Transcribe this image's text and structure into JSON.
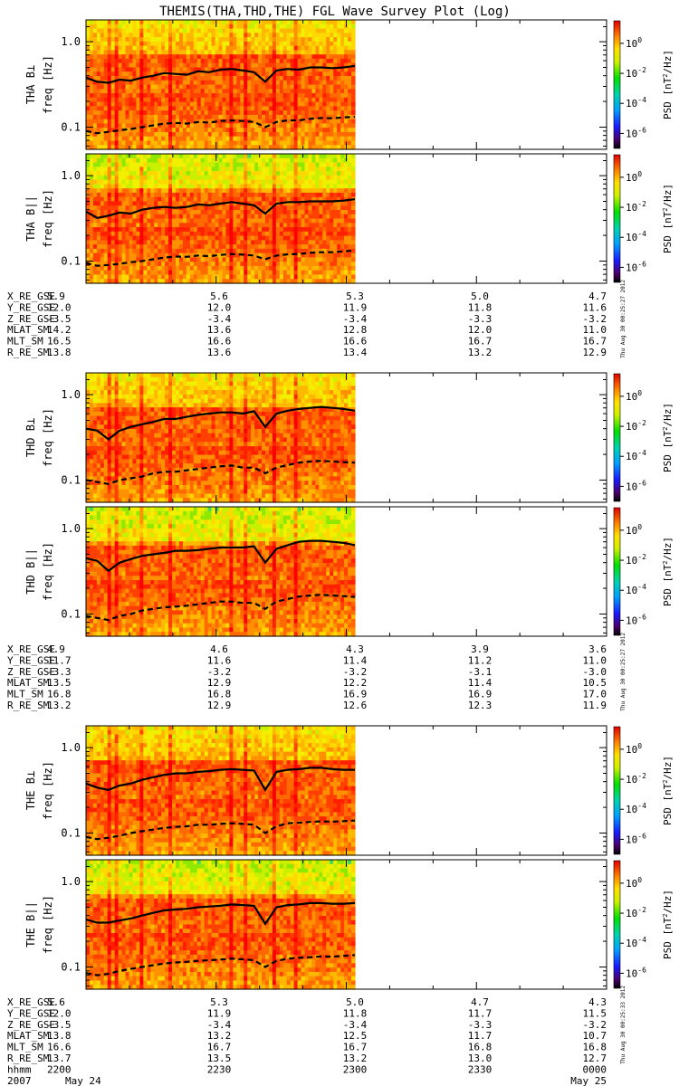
{
  "title": "THEMIS(THA,THD,THE) FGL Wave Survey Plot (Log)",
  "colors": {
    "frame": "#000000",
    "background": "#ffffff"
  },
  "chart_data": {
    "type": "heatmap",
    "title": "THEMIS(THA,THD,THE) FGL Wave Survey Plot (Log)",
    "x_range_hhmm": [
      "2200",
      "0000"
    ],
    "data_end_hhmm": "2300",
    "ylabel_common": "freq [Hz]",
    "ylim_hz": [
      0.055,
      1.8
    ],
    "ytick_labels": [
      "1.0",
      "0.1"
    ],
    "ytick_values": [
      1.0,
      0.1
    ],
    "colorbar": {
      "label": "PSD [nT²/Hz]",
      "label_prefix": "PSD [nT",
      "label_suffix": "/Hz]",
      "range_log10": [
        -7,
        1.5
      ],
      "tick_mantissa": "10",
      "tick_exponents": [
        "0",
        "-2",
        "-4",
        "-6"
      ]
    },
    "panels": [
      {
        "probe": "THA",
        "label_base": "THA B",
        "label_sym": "⊥",
        "solid_rel_freq": [
          0.38,
          0.34,
          0.33,
          0.36,
          0.35,
          0.38,
          0.4,
          0.43,
          0.42,
          0.41,
          0.45,
          0.44,
          0.47,
          0.48,
          0.46,
          0.44,
          0.34,
          0.46,
          0.48,
          0.47,
          0.5,
          0.5,
          0.49,
          0.5,
          0.52
        ],
        "dash_rel_freq": [
          0.09,
          0.085,
          0.088,
          0.092,
          0.095,
          0.1,
          0.105,
          0.11,
          0.112,
          0.11,
          0.115,
          0.113,
          0.118,
          0.12,
          0.118,
          0.115,
          0.1,
          0.115,
          0.12,
          0.12,
          0.125,
          0.128,
          0.127,
          0.13,
          0.132
        ]
      },
      {
        "probe": "THA",
        "label_base": "THA B",
        "label_sym": "||",
        "solid_rel_freq": [
          0.38,
          0.32,
          0.34,
          0.37,
          0.36,
          0.4,
          0.42,
          0.43,
          0.42,
          0.43,
          0.46,
          0.45,
          0.47,
          0.49,
          0.47,
          0.45,
          0.36,
          0.47,
          0.49,
          0.49,
          0.5,
          0.5,
          0.5,
          0.51,
          0.53
        ],
        "dash_rel_freq": [
          0.095,
          0.088,
          0.09,
          0.093,
          0.097,
          0.1,
          0.105,
          0.11,
          0.113,
          0.112,
          0.116,
          0.114,
          0.118,
          0.121,
          0.119,
          0.116,
          0.105,
          0.116,
          0.12,
          0.121,
          0.125,
          0.127,
          0.127,
          0.13,
          0.133
        ]
      },
      {
        "probe": "THD",
        "label_base": "THD B",
        "label_sym": "⊥",
        "solid_rel_freq": [
          0.4,
          0.38,
          0.3,
          0.38,
          0.42,
          0.45,
          0.48,
          0.52,
          0.52,
          0.55,
          0.58,
          0.6,
          0.62,
          0.62,
          0.6,
          0.64,
          0.42,
          0.6,
          0.65,
          0.68,
          0.7,
          0.72,
          0.7,
          0.68,
          0.65
        ],
        "dash_rel_freq": [
          0.1,
          0.095,
          0.09,
          0.1,
          0.105,
          0.11,
          0.12,
          0.125,
          0.125,
          0.13,
          0.135,
          0.14,
          0.145,
          0.148,
          0.14,
          0.14,
          0.12,
          0.14,
          0.15,
          0.16,
          0.165,
          0.168,
          0.165,
          0.162,
          0.16
        ]
      },
      {
        "probe": "THD",
        "label_base": "THD B",
        "label_sym": "||",
        "solid_rel_freq": [
          0.45,
          0.42,
          0.32,
          0.4,
          0.44,
          0.48,
          0.5,
          0.52,
          0.55,
          0.55,
          0.56,
          0.58,
          0.6,
          0.6,
          0.6,
          0.62,
          0.4,
          0.58,
          0.64,
          0.7,
          0.72,
          0.72,
          0.7,
          0.68,
          0.64
        ],
        "dash_rel_freq": [
          0.095,
          0.09,
          0.085,
          0.095,
          0.1,
          0.11,
          0.115,
          0.12,
          0.122,
          0.125,
          0.13,
          0.135,
          0.14,
          0.14,
          0.135,
          0.135,
          0.115,
          0.14,
          0.15,
          0.16,
          0.165,
          0.168,
          0.165,
          0.162,
          0.158
        ]
      },
      {
        "probe": "THE",
        "label_base": "THE B",
        "label_sym": "⊥",
        "solid_rel_freq": [
          0.38,
          0.34,
          0.32,
          0.36,
          0.38,
          0.42,
          0.45,
          0.48,
          0.5,
          0.5,
          0.52,
          0.53,
          0.55,
          0.56,
          0.55,
          0.54,
          0.32,
          0.52,
          0.55,
          0.56,
          0.58,
          0.58,
          0.56,
          0.55,
          0.55
        ],
        "dash_rel_freq": [
          0.09,
          0.085,
          0.088,
          0.093,
          0.1,
          0.105,
          0.11,
          0.115,
          0.118,
          0.12,
          0.125,
          0.125,
          0.128,
          0.13,
          0.128,
          0.125,
          0.1,
          0.12,
          0.13,
          0.132,
          0.135,
          0.137,
          0.136,
          0.138,
          0.14
        ]
      },
      {
        "probe": "THE",
        "label_base": "THE B",
        "label_sym": "||",
        "solid_rel_freq": [
          0.36,
          0.33,
          0.33,
          0.35,
          0.37,
          0.4,
          0.43,
          0.46,
          0.47,
          0.48,
          0.5,
          0.51,
          0.52,
          0.54,
          0.53,
          0.52,
          0.32,
          0.5,
          0.53,
          0.54,
          0.56,
          0.56,
          0.55,
          0.55,
          0.56
        ],
        "dash_rel_freq": [
          0.085,
          0.08,
          0.083,
          0.09,
          0.095,
          0.1,
          0.105,
          0.11,
          0.113,
          0.115,
          0.118,
          0.12,
          0.122,
          0.125,
          0.123,
          0.12,
          0.1,
          0.118,
          0.125,
          0.128,
          0.13,
          0.133,
          0.132,
          0.135,
          0.138
        ]
      }
    ],
    "orbit_tables": [
      {
        "probe": "THA",
        "rows": [
          {
            "name": "X_RE_GSE",
            "values": [
              "5.9",
              "5.6",
              "5.3",
              "5.0",
              "4.7"
            ]
          },
          {
            "name": "Y_RE_GSE",
            "values": [
              "12.0",
              "12.0",
              "11.9",
              "11.8",
              "11.6"
            ]
          },
          {
            "name": "Z_RE_GSE",
            "values": [
              "-3.5",
              "-3.4",
              "-3.4",
              "-3.3",
              "-3.2"
            ]
          },
          {
            "name": "MLAT_SM",
            "values": [
              "14.2",
              "13.6",
              "12.8",
              "12.0",
              "11.0"
            ]
          },
          {
            "name": "MLT_SM",
            "values": [
              "16.5",
              "16.6",
              "16.6",
              "16.7",
              "16.7"
            ]
          },
          {
            "name": "R_RE_SM",
            "values": [
              "13.8",
              "13.6",
              "13.4",
              "13.2",
              "12.9"
            ]
          }
        ]
      },
      {
        "probe": "THD",
        "rows": [
          {
            "name": "X_RE_GSE",
            "values": [
              "4.9",
              "4.6",
              "4.3",
              "3.9",
              "3.6"
            ]
          },
          {
            "name": "Y_RE_GSE",
            "values": [
              "11.7",
              "11.6",
              "11.4",
              "11.2",
              "11.0"
            ]
          },
          {
            "name": "Z_RE_GSE",
            "values": [
              "-3.3",
              "-3.2",
              "-3.2",
              "-3.1",
              "-3.0"
            ]
          },
          {
            "name": "MLAT_SM",
            "values": [
              "13.5",
              "12.9",
              "12.2",
              "11.4",
              "10.5"
            ]
          },
          {
            "name": "MLT_SM",
            "values": [
              "16.8",
              "16.8",
              "16.9",
              "16.9",
              "17.0"
            ]
          },
          {
            "name": "R_RE_SM",
            "values": [
              "13.2",
              "12.9",
              "12.6",
              "12.3",
              "11.9"
            ]
          }
        ]
      },
      {
        "probe": "THE",
        "rows": [
          {
            "name": "X_RE_GSE",
            "values": [
              "5.6",
              "5.3",
              "5.0",
              "4.7",
              "4.3"
            ]
          },
          {
            "name": "Y_RE_GSE",
            "values": [
              "12.0",
              "11.9",
              "11.8",
              "11.7",
              "11.5"
            ]
          },
          {
            "name": "Z_RE_GSE",
            "values": [
              "-3.5",
              "-3.4",
              "-3.4",
              "-3.3",
              "-3.2"
            ]
          },
          {
            "name": "MLAT_SM",
            "values": [
              "13.8",
              "13.2",
              "12.5",
              "11.7",
              "10.7"
            ]
          },
          {
            "name": "MLT_SM",
            "values": [
              "16.6",
              "16.7",
              "16.7",
              "16.8",
              "16.8"
            ]
          },
          {
            "name": "R_RE_SM",
            "values": [
              "13.7",
              "13.5",
              "13.2",
              "13.0",
              "12.7"
            ]
          },
          {
            "name": "hhmm",
            "values": [
              "2200",
              "2230",
              "2300",
              "2330",
              "0000"
            ]
          }
        ]
      }
    ],
    "date_labels": {
      "year": "2007",
      "start": "May 24",
      "end": "May 25"
    },
    "timestamps": [
      "Thu Aug 30 00:25:27 2012",
      "Thu Aug 30 00:25:33 2012"
    ]
  }
}
